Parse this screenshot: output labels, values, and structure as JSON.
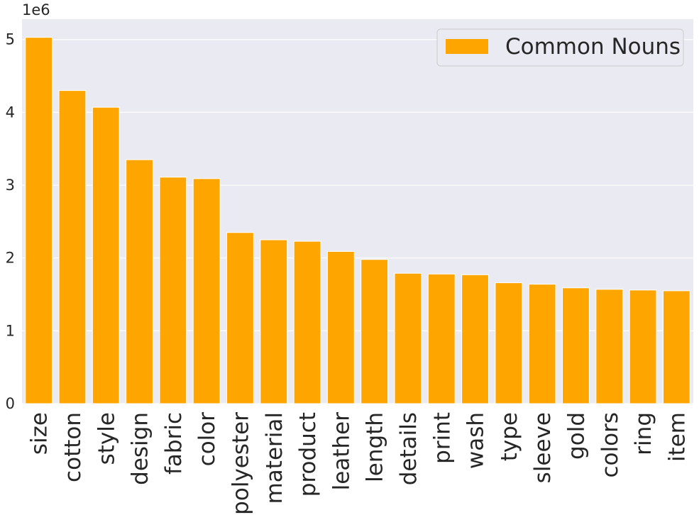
{
  "chart_data": {
    "type": "bar",
    "categories": [
      "size",
      "cotton",
      "style",
      "design",
      "fabric",
      "color",
      "polyester",
      "material",
      "product",
      "leather",
      "length",
      "details",
      "print",
      "wash",
      "type",
      "sleeve",
      "gold",
      "colors",
      "ring",
      "item"
    ],
    "series": [
      {
        "name": "Common Nouns",
        "values": [
          5030000,
          4300000,
          4070000,
          3350000,
          3110000,
          3090000,
          2350000,
          2250000,
          2230000,
          2090000,
          1980000,
          1790000,
          1780000,
          1770000,
          1660000,
          1640000,
          1590000,
          1570000,
          1560000,
          1550000
        ],
        "color": "#ffa500"
      }
    ],
    "y_ticks": [
      0,
      1,
      2,
      3,
      4,
      5
    ],
    "y_offset_label": "1e6",
    "ylim": [
      0,
      5.28
    ],
    "y_scale_factor": 1000000,
    "grid": true,
    "legend_position": "top-right",
    "background_color": "#eaeaf2",
    "grid_color": "#ffffff"
  }
}
